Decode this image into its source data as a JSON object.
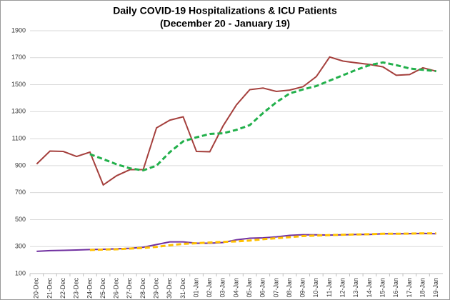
{
  "chart_data": {
    "type": "line",
    "title": "Daily COVID-19 Hospitalizations & ICU Patients",
    "subtitle": "(December 20 - January 19)",
    "categories": [
      "20-Dec",
      "21-Dec",
      "22-Dec",
      "23-Dec",
      "24-Dec",
      "25-Dec",
      "26-Dec",
      "27-Dec",
      "28-Dec",
      "29-Dec",
      "30-Dec",
      "31-Dec",
      "01-Jan",
      "02-Jan",
      "03-Jan",
      "04-Jan",
      "05-Jan",
      "06-Jan",
      "07-Jan",
      "08-Jan",
      "09-Jan",
      "10-Jan",
      "11-Jan",
      "12-Jan",
      "13-Jan",
      "14-Jan",
      "15-Jan",
      "16-Jan",
      "17-Jan",
      "18-Jan",
      "19-Jan"
    ],
    "series": [
      {
        "color": "#a5403d",
        "dashed": false,
        "values": [
          912,
          1008,
          1005,
          968,
          1000,
          757,
          825,
          870,
          870,
          1180,
          1237,
          1262,
          1005,
          1003,
          1195,
          1350,
          1463,
          1475,
          1450,
          1460,
          1485,
          1560,
          1705,
          1675,
          1662,
          1650,
          1632,
          1570,
          1575,
          1625,
          1600
        ]
      },
      {
        "color": "#22b04b",
        "dashed": true,
        "values": [
          null,
          null,
          null,
          null,
          985,
          948,
          910,
          880,
          865,
          900,
          1000,
          1080,
          1110,
          1135,
          1140,
          1165,
          1200,
          1290,
          1370,
          1435,
          1465,
          1490,
          1530,
          1570,
          1610,
          1645,
          1665,
          1645,
          1620,
          1610,
          1600
        ]
      },
      {
        "color": "#7030a0",
        "dashed": false,
        "values": [
          265,
          270,
          272,
          275,
          278,
          280,
          283,
          287,
          295,
          315,
          335,
          335,
          325,
          325,
          330,
          350,
          362,
          365,
          372,
          383,
          388,
          387,
          385,
          387,
          390,
          390,
          395,
          395,
          396,
          398,
          395
        ]
      },
      {
        "color": "#ffc000",
        "dashed": true,
        "values": [
          null,
          null,
          null,
          null,
          275,
          278,
          280,
          285,
          290,
          298,
          310,
          320,
          325,
          330,
          335,
          338,
          345,
          355,
          362,
          370,
          378,
          382,
          385,
          388,
          390,
          392,
          395,
          395,
          396,
          398,
          398
        ]
      }
    ],
    "ylim": [
      100,
      1900
    ],
    "yticks": [
      100,
      300,
      500,
      700,
      900,
      1100,
      1300,
      1500,
      1700,
      1900
    ],
    "grid": true
  }
}
